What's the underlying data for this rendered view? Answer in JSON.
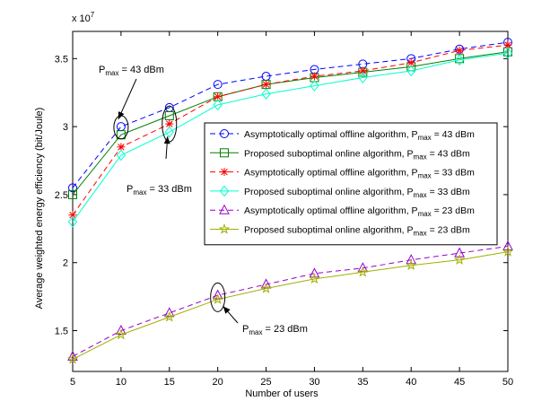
{
  "chart_data": {
    "type": "line",
    "xlabel": "Number of users",
    "ylabel": "Average weighted energy efficiency (bit/Joule)",
    "y_multiplier": "x 10",
    "y_multiplier_exp": "7",
    "xlim": [
      5,
      50
    ],
    "ylim": [
      1.2,
      3.7
    ],
    "grid": false,
    "legend_position": "middle-right",
    "x_ticks": [
      5,
      10,
      15,
      20,
      25,
      30,
      35,
      40,
      45,
      50
    ],
    "x_tick_labels": [
      "5",
      "10",
      "15",
      "20",
      "25",
      "30",
      "35",
      "40",
      "45",
      "50"
    ],
    "y_ticks": [
      1.5,
      2.0,
      2.5,
      3.0,
      3.5
    ],
    "y_tick_labels": [
      "1.5",
      "2",
      "2.5",
      "3",
      "3.5"
    ],
    "x": [
      5,
      10,
      15,
      20,
      25,
      30,
      35,
      40,
      45,
      50
    ],
    "series": [
      {
        "name": "Asymptotically optimal offline algorithm, P_max = 43 dBm",
        "name_main": "Asymptotically optimal offline algorithm, P",
        "name_sub": "max",
        "name_tail": " = 43 dBm",
        "color": "#0000ff",
        "dash": "dashed",
        "marker": "circle",
        "values": [
          2.55,
          3.0,
          3.14,
          3.31,
          3.37,
          3.42,
          3.46,
          3.5,
          3.57,
          3.62
        ]
      },
      {
        "name": "Proposed suboptimal online algorithm, P_max = 43 dBm",
        "name_main": "Proposed suboptimal online algorithm, P",
        "name_sub": "max",
        "name_tail": " = 43 dBm",
        "color": "#008000",
        "dash": "solid",
        "marker": "square",
        "values": [
          2.5,
          2.94,
          3.08,
          3.22,
          3.31,
          3.36,
          3.4,
          3.44,
          3.5,
          3.55
        ]
      },
      {
        "name": "Asymptotically optimal offline algorithm, P_max = 33 dBm",
        "name_main": "Asymptotically optimal offline algorithm, P",
        "name_sub": "max",
        "name_tail": " = 33 dBm",
        "color": "#ff0000",
        "dash": "dashed",
        "marker": "asterisk",
        "values": [
          2.35,
          2.85,
          3.02,
          3.22,
          3.31,
          3.37,
          3.41,
          3.47,
          3.56,
          3.6
        ]
      },
      {
        "name": "Proposed suboptimal online algorithm, P_max = 33 dBm",
        "name_main": "Proposed suboptimal online algorithm, P",
        "name_sub": "max",
        "name_tail": " = 33 dBm",
        "color": "#00ffcc",
        "dash": "solid",
        "marker": "diamond",
        "values": [
          2.3,
          2.79,
          2.96,
          3.16,
          3.24,
          3.3,
          3.36,
          3.41,
          3.49,
          3.54
        ]
      },
      {
        "name": "Asymptotically optimal offline algorithm, P_max = 23 dBm",
        "name_main": "Asymptotically optimal offline algorithm, P",
        "name_sub": "max",
        "name_tail": " = 23 dBm",
        "color": "#9900cc",
        "dash": "dashed",
        "marker": "triangle",
        "values": [
          1.31,
          1.5,
          1.63,
          1.76,
          1.84,
          1.92,
          1.96,
          2.02,
          2.07,
          2.12
        ]
      },
      {
        "name": "Proposed suboptimal online algorithm, P_max = 23 dBm",
        "name_main": "Proposed suboptimal online algorithm, P",
        "name_sub": "max",
        "name_tail": " = 23 dBm",
        "color": "#a0b000",
        "dash": "solid",
        "marker": "star",
        "values": [
          1.29,
          1.47,
          1.6,
          1.73,
          1.81,
          1.88,
          1.93,
          1.98,
          2.02,
          2.08
        ]
      }
    ],
    "annotations": [
      {
        "main": "P",
        "sub": "max",
        "tail": " = 43 dBm",
        "target_x": 10,
        "target_y": 2.995
      },
      {
        "main": "P",
        "sub": "max",
        "tail": " = 33 dBm",
        "target_x": 15,
        "target_y": 3.02
      },
      {
        "main": "P",
        "sub": "max",
        "tail": " = 23 dBm",
        "target_x": 20,
        "target_y": 1.745
      }
    ]
  }
}
